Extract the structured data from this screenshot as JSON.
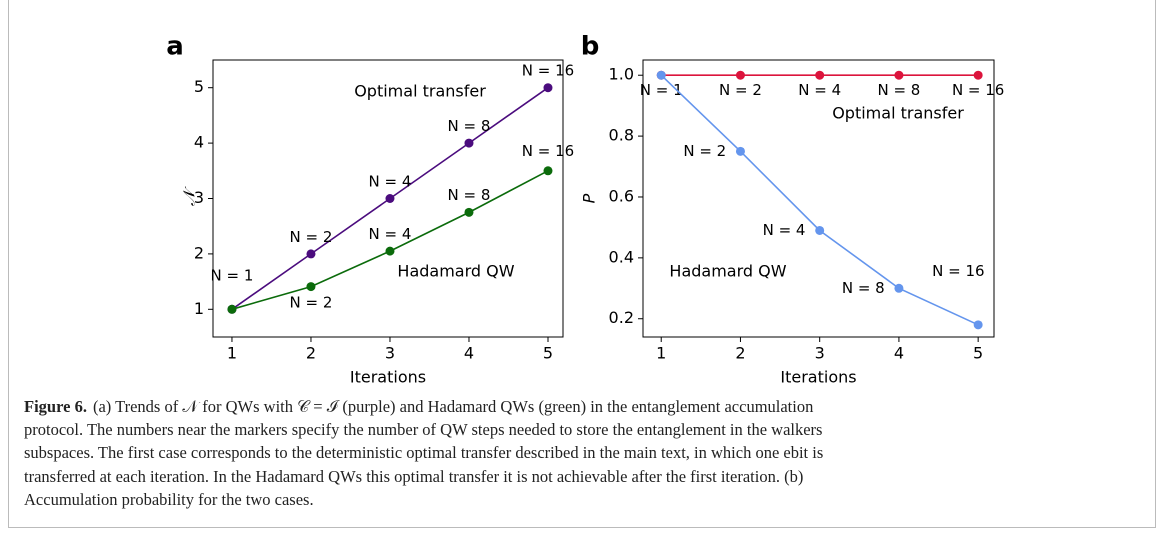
{
  "chart_data": [
    {
      "type": "line",
      "panel_label": "a",
      "xlabel": "Iterations",
      "ylabel": "𝒩",
      "x": [
        1,
        2,
        3,
        4,
        5
      ],
      "xlim": [
        0.76,
        5.19
      ],
      "xticks": [
        1,
        2,
        3,
        4,
        5
      ],
      "ylim": [
        0.5,
        5.5
      ],
      "yticks": [
        1,
        2,
        3,
        4,
        5
      ],
      "series": [
        {
          "name": "Optimal transfer",
          "color": "#4b0c7e",
          "values": [
            1,
            2,
            3,
            4,
            5
          ],
          "point_labels": [
            "N = 1",
            "N = 2",
            "N = 4",
            "N = 8",
            "N = 16"
          ]
        },
        {
          "name": "Hadamard QW",
          "color": "#0b6b0b",
          "values": [
            1,
            1.41,
            2.05,
            2.75,
            3.5
          ],
          "point_labels": [
            null,
            "N = 2",
            "N = 4",
            "N = 8",
            "N = 16"
          ]
        }
      ]
    },
    {
      "type": "line",
      "panel_label": "b",
      "xlabel": "Iterations",
      "ylabel": "P",
      "x": [
        1,
        2,
        3,
        4,
        5
      ],
      "xlim": [
        0.77,
        5.2
      ],
      "xticks": [
        1,
        2,
        3,
        4,
        5
      ],
      "ylim": [
        0.14,
        1.05
      ],
      "yticks": [
        0.2,
        0.4,
        0.6,
        0.8,
        {
          "value": 1,
          "label": "1.0"
        }
      ],
      "series": [
        {
          "name": "Optimal transfer",
          "color": "#dc143c",
          "values": [
            1,
            1,
            1,
            1,
            1
          ],
          "point_labels": [
            "N = 1",
            "N = 2",
            "N = 4",
            "N = 8",
            "N = 16"
          ]
        },
        {
          "name": "Hadamard QW",
          "color": "#6495ed",
          "values": [
            1,
            0.75,
            0.49,
            0.3,
            0.18
          ],
          "point_labels": [
            null,
            "N = 2",
            "N = 4",
            "N = 8",
            "N = 16"
          ]
        }
      ]
    }
  ],
  "caption": {
    "label": "Figure 6.",
    "lines": [
      "(a) Trends of 𝒩 for QWs with 𝒞 = ℐ (purple) and Hadamard QWs (green) in the entanglement accumulation",
      "protocol. The numbers near the markers specify the number of QW steps needed to store the entanglement in the walkers",
      "subspaces. The first case corresponds to the deterministic optimal transfer described in the main text, in which one ebit is",
      "transferred at each iteration. In the Hadamard QWs this optimal transfer it is not achievable after the first iteration. (b)",
      "Accumulation probability for the two cases."
    ]
  }
}
